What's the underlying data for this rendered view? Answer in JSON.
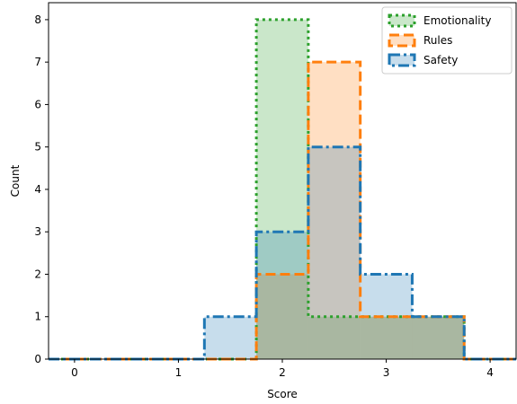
{
  "chart_data": {
    "type": "histogram",
    "title": "",
    "xlabel": "Score",
    "ylabel": "Count",
    "xlim": [
      -0.25,
      4.25
    ],
    "ylim": [
      0,
      8.4
    ],
    "xticks": [
      0,
      1,
      2,
      3,
      4
    ],
    "yticks": [
      0,
      1,
      2,
      3,
      4,
      5,
      6,
      7,
      8
    ],
    "bin_width": 0.5,
    "grid": false,
    "legend_position": "top-right",
    "series": [
      {
        "name": "Emotionality",
        "color": "#2ca02c",
        "linestyle": "dotted",
        "bins": [
          -0.25,
          0.25,
          0.75,
          1.25,
          1.75,
          2.25,
          2.75,
          3.25,
          3.75,
          4.25
        ],
        "counts": [
          0,
          0,
          0,
          0,
          8,
          1,
          1,
          1,
          0
        ]
      },
      {
        "name": "Rules",
        "color": "#ff7f0e",
        "linestyle": "dashed",
        "bins": [
          -0.25,
          0.25,
          0.75,
          1.25,
          1.75,
          2.25,
          2.75,
          3.25,
          3.75,
          4.25
        ],
        "counts": [
          0,
          0,
          0,
          0,
          2,
          7,
          1,
          1,
          0
        ]
      },
      {
        "name": "Safety",
        "color": "#1f77b4",
        "linestyle": "dashdot",
        "bins": [
          -0.25,
          0.25,
          0.75,
          1.25,
          1.75,
          2.25,
          2.75,
          3.25,
          3.75,
          4.25
        ],
        "counts": [
          0,
          0,
          0,
          1,
          3,
          5,
          2,
          1,
          0
        ]
      }
    ]
  }
}
